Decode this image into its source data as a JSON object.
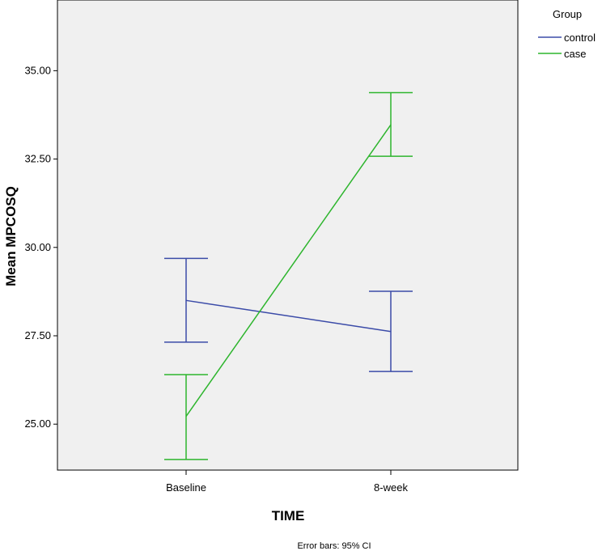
{
  "chart_data": {
    "type": "line",
    "categories": [
      "Baseline",
      "8-week"
    ],
    "xlabel": "TIME",
    "ylabel": "Mean MPCOSQ",
    "ylim": [
      23.7,
      37.0
    ],
    "yticks": [
      "25.00",
      "27.50",
      "30.00",
      "32.50",
      "35.00"
    ],
    "legend_title": "Group",
    "legend_position": "top-right, outside plot",
    "grid": false,
    "footnote": "Error bars: 95% CI",
    "background_color": "#f0f0f0",
    "series": [
      {
        "name": "control",
        "color": "#3b4ba8",
        "values": [
          28.5,
          27.62
        ],
        "ci_low": [
          27.32,
          26.49
        ],
        "ci_high": [
          29.69,
          28.76
        ]
      },
      {
        "name": "case",
        "color": "#2db52d",
        "values": [
          25.22,
          33.47
        ],
        "ci_low": [
          24.0,
          32.58
        ],
        "ci_high": [
          26.4,
          34.38
        ]
      }
    ]
  }
}
